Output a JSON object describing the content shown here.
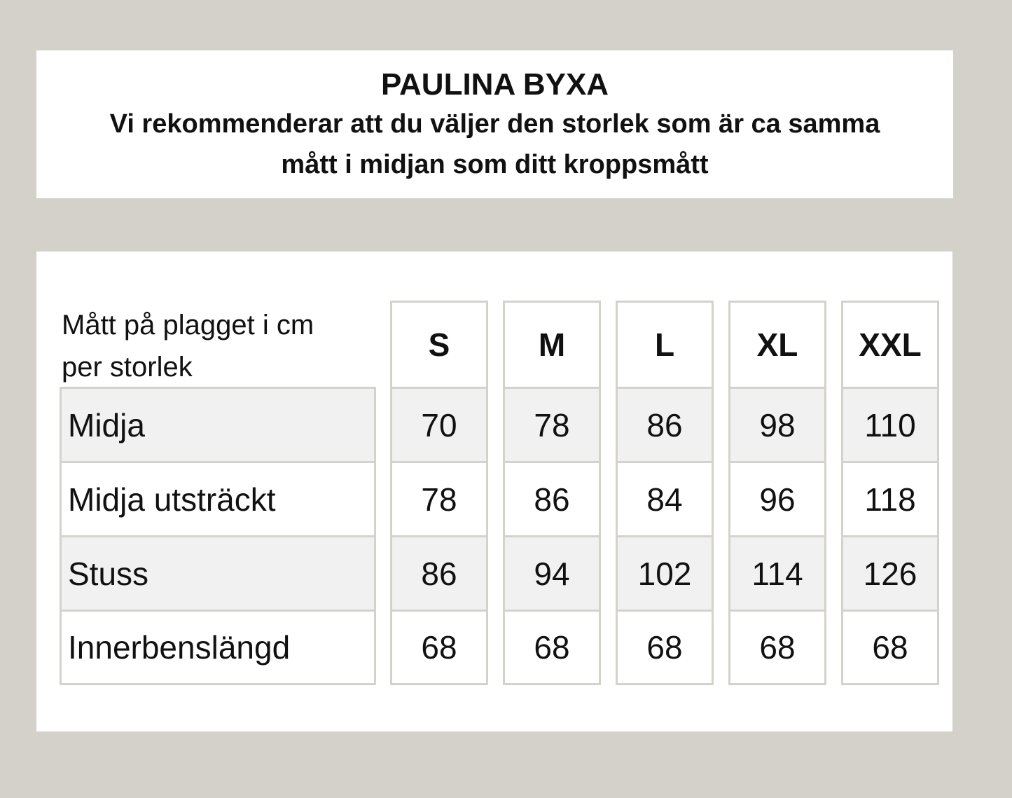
{
  "header": {
    "title": "PAULINA BYXA",
    "subtitle_line1": "Vi rekommenderar att du väljer den storlek som är ca samma",
    "subtitle_line2": "mått i midjan som ditt kroppsmått"
  },
  "table": {
    "caption_line1": "Mått på plagget i cm",
    "caption_line2": "per storlek",
    "sizes": [
      "S",
      "M",
      "L",
      "XL",
      "XXL"
    ],
    "rows": [
      {
        "label": "Midja",
        "values": [
          "70",
          "78",
          "86",
          "98",
          "110"
        ]
      },
      {
        "label": "Midja utsträckt",
        "values": [
          "78",
          "86",
          "84",
          "96",
          "118"
        ]
      },
      {
        "label": "Stuss",
        "values": [
          "86",
          "94",
          "102",
          "114",
          "126"
        ]
      },
      {
        "label": "Innerbenslängd",
        "values": [
          "68",
          "68",
          "68",
          "68",
          "68"
        ]
      }
    ]
  },
  "colors": {
    "background": "#d3d1ca",
    "border": "#d4d2cc",
    "stripe": "#f1f1f1"
  }
}
